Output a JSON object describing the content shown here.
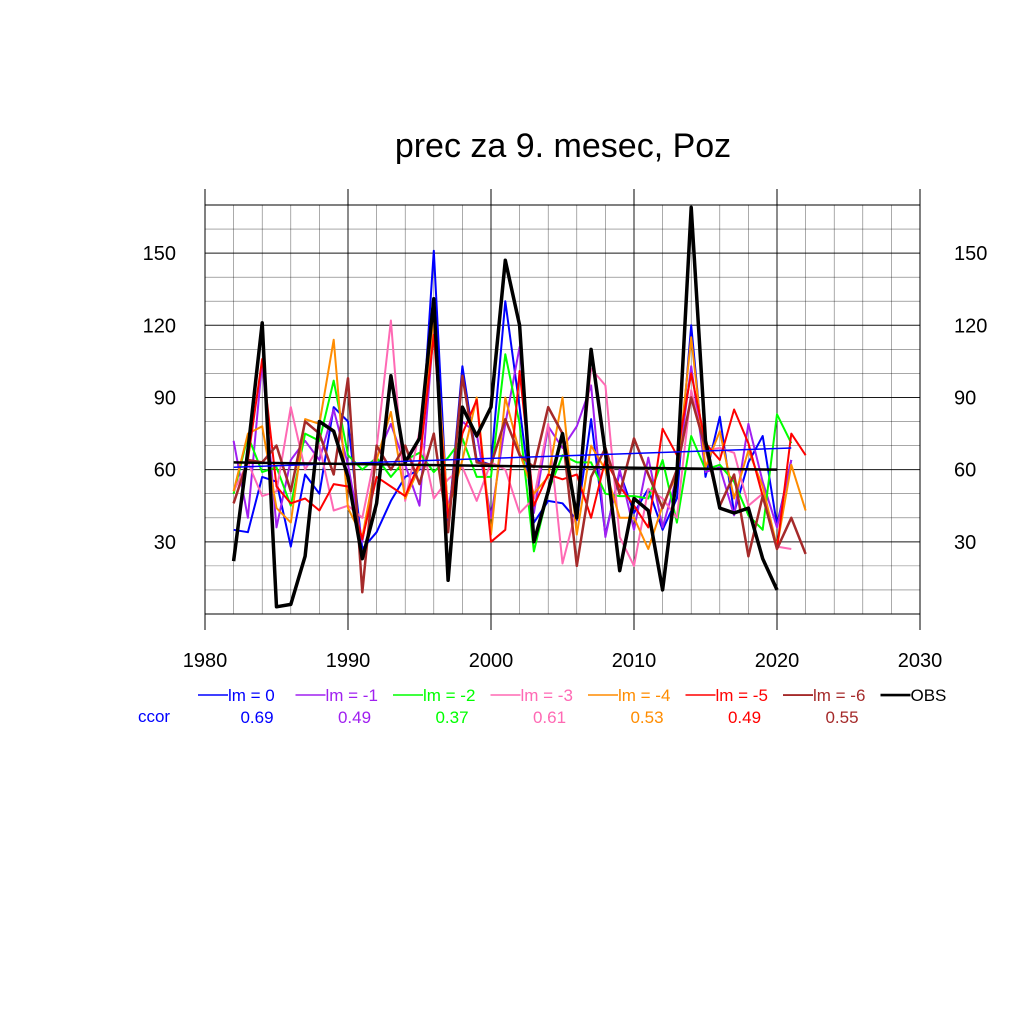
{
  "chart_data": {
    "type": "line",
    "title": "prec za 9. mesec, Poz",
    "xlabel": "",
    "ylabel": "",
    "xlim": [
      1980,
      2030
    ],
    "ylim": [
      0,
      170
    ],
    "x_ticks": [
      1980,
      1990,
      2000,
      2010,
      2020,
      2030
    ],
    "y_ticks": [
      30,
      60,
      90,
      120,
      150
    ],
    "grid": true,
    "legend_position": "bottom",
    "ccor_label": "ccor",
    "ccor_color": "#0000ff",
    "x": [
      1982,
      1983,
      1984,
      1985,
      1986,
      1987,
      1988,
      1989,
      1990,
      1991,
      1992,
      1993,
      1994,
      1995,
      1996,
      1997,
      1998,
      1999,
      2000,
      2001,
      2002,
      2003,
      2004,
      2005,
      2006,
      2007,
      2008,
      2009,
      2010,
      2011,
      2012,
      2013,
      2014,
      2015,
      2016,
      2017,
      2018,
      2019,
      2020,
      2021,
      2022
    ],
    "series": [
      {
        "name": "lm = 0",
        "color": "#0000ff",
        "width": 2,
        "ccor": "0.69",
        "values": [
          35,
          34,
          57,
          55,
          28,
          58,
          50,
          86,
          80,
          27,
          34,
          47,
          57,
          60,
          151,
          36,
          103,
          64,
          62,
          130,
          86,
          38,
          47,
          46,
          39,
          81,
          33,
          59,
          42,
          52,
          35,
          48,
          120,
          57,
          82,
          42,
          63,
          74,
          37,
          64,
          null
        ]
      },
      {
        "name": "lm = -1",
        "color": "#a020f0",
        "width": 2,
        "ccor": "0.49",
        "values": [
          72,
          40,
          105,
          36,
          64,
          72,
          64,
          85,
          62,
          30,
          65,
          79,
          62,
          45,
          119,
          43,
          80,
          75,
          40,
          79,
          111,
          42,
          78,
          69,
          78,
          95,
          32,
          60,
          35,
          65,
          36,
          57,
          103,
          59,
          61,
          41,
          79,
          55,
          36,
          64,
          null
        ]
      },
      {
        "name": "lm = -2",
        "color": "#00ff00",
        "width": 2,
        "ccor": "0.37",
        "values": [
          50,
          74,
          59,
          61,
          45,
          75,
          72,
          97,
          66,
          60,
          65,
          57,
          64,
          67,
          59,
          65,
          73,
          57,
          57,
          108,
          79,
          26,
          51,
          66,
          63,
          63,
          50,
          49,
          49,
          48,
          64,
          38,
          74,
          60,
          62,
          55,
          41,
          35,
          83,
          71,
          null
        ]
      },
      {
        "name": "lm = -3",
        "color": "#ff69b4",
        "width": 2,
        "ccor": "0.61",
        "values": [
          51,
          63,
          49,
          51,
          86,
          60,
          70,
          43,
          45,
          40,
          69,
          122,
          47,
          76,
          48,
          56,
          61,
          47,
          63,
          60,
          42,
          48,
          79,
          21,
          44,
          102,
          95,
          32,
          20,
          52,
          48,
          40,
          93,
          68,
          69,
          67,
          45,
          50,
          28,
          27,
          null
        ]
      },
      {
        "name": "lm = -4",
        "color": "#ff8c00",
        "width": 2,
        "ccor": "0.53",
        "values": [
          51,
          75,
          78,
          44,
          38,
          81,
          79,
          114,
          44,
          32,
          64,
          84,
          48,
          61,
          123,
          43,
          64,
          90,
          33,
          90,
          67,
          50,
          57,
          90,
          33,
          70,
          60,
          40,
          40,
          27,
          45,
          58,
          115,
          61,
          76,
          48,
          68,
          53,
          28,
          62,
          43
        ]
      },
      {
        "name": "lm = -5",
        "color": "#ff0000",
        "width": 2,
        "ccor": "0.49",
        "values": [
          46,
          64,
          106,
          53,
          46,
          48,
          43,
          54,
          53,
          31,
          57,
          53,
          49,
          63,
          116,
          40,
          75,
          89,
          30,
          35,
          101,
          45,
          58,
          56,
          58,
          40,
          64,
          53,
          45,
          36,
          77,
          66,
          100,
          71,
          64,
          85,
          71,
          49,
          27,
          75,
          66
        ]
      },
      {
        "name": "lm = -6",
        "color": "#a52a2a",
        "width": 2.5,
        "ccor": "0.55",
        "values": [
          46,
          64,
          63,
          70,
          51,
          80,
          75,
          58,
          98,
          9,
          70,
          60,
          70,
          54,
          75,
          34,
          99,
          63,
          62,
          81,
          66,
          61,
          86,
          75,
          20,
          57,
          69,
          50,
          73,
          58,
          44,
          60,
          90,
          69,
          45,
          58,
          24,
          49,
          27,
          40,
          25
        ]
      },
      {
        "name": "OBS",
        "color": "#000000",
        "width": 3.5,
        "ccor": "",
        "values": [
          22,
          68,
          121,
          3,
          4,
          24,
          80,
          76,
          57,
          23,
          46,
          99,
          63,
          73,
          131,
          14,
          86,
          74,
          86,
          147,
          120,
          30,
          51,
          75,
          40,
          110,
          67,
          18,
          48,
          43,
          10,
          58,
          169,
          72,
          44,
          42,
          44,
          23,
          10,
          null,
          null
        ]
      }
    ],
    "trend_lines": [
      {
        "name": "lm = 0 trend",
        "color": "#0000ff",
        "width": 1.5,
        "x": [
          1982,
          2021
        ],
        "y": [
          61,
          69
        ]
      },
      {
        "name": "OBS trend",
        "color": "#000000",
        "width": 2.5,
        "x": [
          1982,
          2020
        ],
        "y": [
          63,
          60
        ]
      }
    ]
  }
}
